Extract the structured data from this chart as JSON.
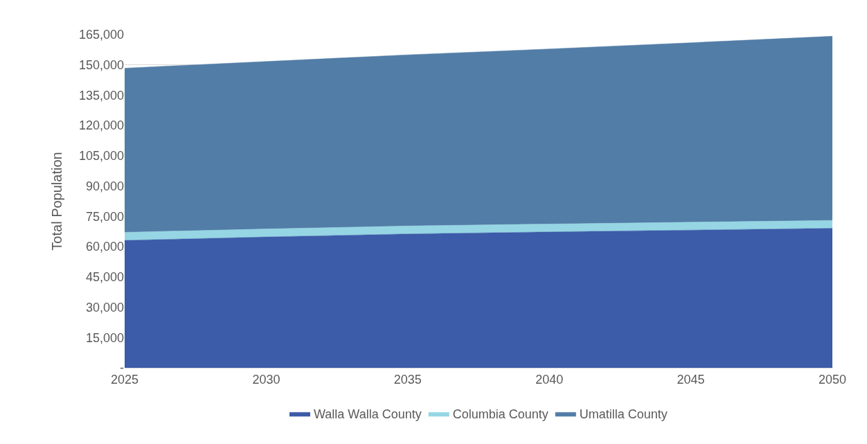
{
  "chart_data": {
    "type": "area",
    "stacked": true,
    "ylabel": "Total Population",
    "x": [
      2025,
      2030,
      2035,
      2040,
      2045,
      2050
    ],
    "xlim": [
      2025,
      2050
    ],
    "xticks": [
      2025,
      2030,
      2035,
      2040,
      2045,
      2050
    ],
    "ylim": [
      0,
      165000
    ],
    "yticks": [
      {
        "value": 0,
        "label": "-"
      },
      {
        "value": 15000,
        "label": "15,000"
      },
      {
        "value": 30000,
        "label": "30,000"
      },
      {
        "value": 45000,
        "label": "45,000"
      },
      {
        "value": 60000,
        "label": "60,000"
      },
      {
        "value": 75000,
        "label": "75,000"
      },
      {
        "value": 90000,
        "label": "90,000"
      },
      {
        "value": 105000,
        "label": "105,000"
      },
      {
        "value": 120000,
        "label": "120,000"
      },
      {
        "value": 135000,
        "label": "135,000"
      },
      {
        "value": 150000,
        "label": "150,000"
      },
      {
        "value": 165000,
        "label": "165,000"
      }
    ],
    "grid": "y",
    "legend": "bottom",
    "series": [
      {
        "name": "Walla Walla County",
        "color": "#3c5ba8",
        "values": [
          63100,
          64800,
          66300,
          67300,
          68200,
          69100
        ]
      },
      {
        "name": "Columbia County",
        "color": "#96d6e4",
        "values": [
          4000,
          3950,
          3950,
          3900,
          3900,
          3900
        ]
      },
      {
        "name": "Umatilla County",
        "color": "#527da7",
        "values": [
          81300,
          82950,
          84750,
          86700,
          88900,
          91200
        ]
      }
    ]
  }
}
